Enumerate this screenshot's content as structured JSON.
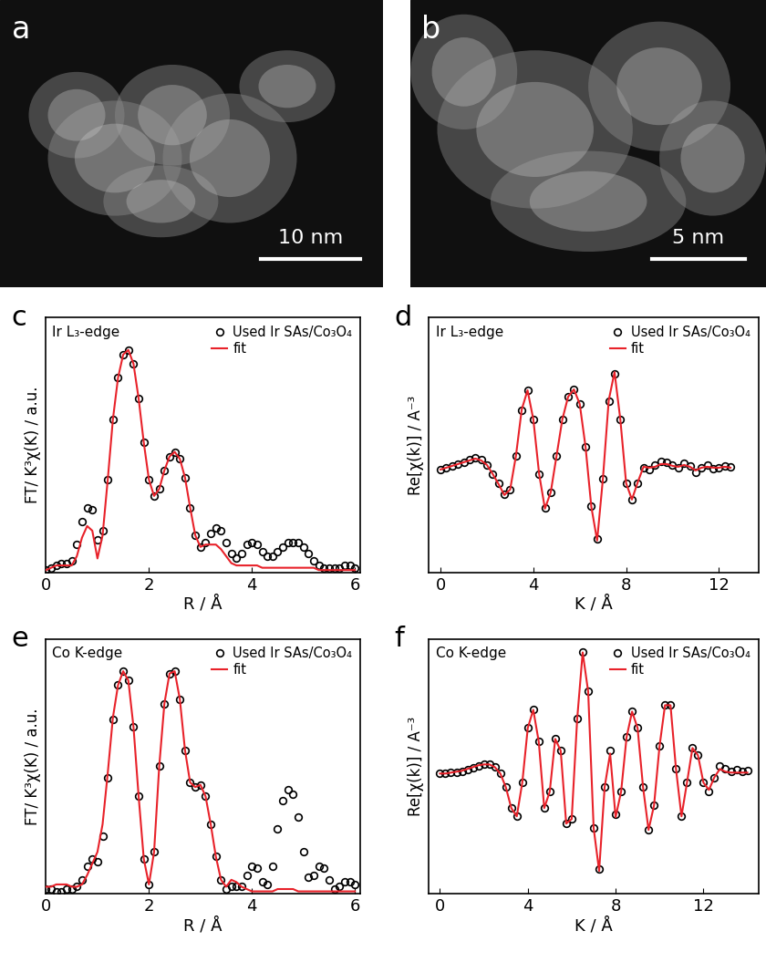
{
  "images": [
    {
      "label": "a",
      "scale_bar": "10 nm"
    },
    {
      "label": "b",
      "scale_bar": "5 nm"
    }
  ],
  "chart_data": [
    {
      "type": "line",
      "annotations": [
        "c",
        "Ir L₃-edge"
      ],
      "x_label": "R / Å",
      "y_label": "FT/ K³χ(K) / a.u.",
      "x": [
        0.0,
        0.1,
        0.2,
        0.3,
        0.4,
        0.5,
        0.6,
        0.7,
        0.8,
        0.9,
        1.0,
        1.1,
        1.2,
        1.3,
        1.4,
        1.5,
        1.6,
        1.7,
        1.8,
        1.9,
        2.0,
        2.1,
        2.2,
        2.3,
        2.4,
        2.5,
        2.6,
        2.7,
        2.8,
        2.9,
        3.0,
        3.1,
        3.2,
        3.3,
        3.4,
        3.5,
        3.6,
        3.7,
        3.8,
        3.9,
        4.0,
        4.1,
        4.2,
        4.3,
        4.4,
        4.5,
        4.6,
        4.7,
        4.8,
        4.9,
        5.0,
        5.1,
        5.2,
        5.3,
        5.4,
        5.5,
        5.6,
        5.7,
        5.8,
        5.9,
        6.0
      ],
      "series": [
        {
          "name": "Used Ir SAs/Co₃O₄",
          "type": "scatter",
          "marker": "circle",
          "color": "#000000",
          "values": [
            0.01,
            0.02,
            0.03,
            0.04,
            0.04,
            0.05,
            0.12,
            0.22,
            0.28,
            0.27,
            0.14,
            0.18,
            0.4,
            0.66,
            0.84,
            0.94,
            0.96,
            0.9,
            0.75,
            0.56,
            0.4,
            0.33,
            0.36,
            0.44,
            0.5,
            0.52,
            0.49,
            0.41,
            0.28,
            0.16,
            0.11,
            0.13,
            0.17,
            0.19,
            0.18,
            0.13,
            0.08,
            0.06,
            0.08,
            0.12,
            0.13,
            0.12,
            0.09,
            0.07,
            0.07,
            0.09,
            0.11,
            0.13,
            0.13,
            0.13,
            0.11,
            0.08,
            0.05,
            0.03,
            0.02,
            0.02,
            0.02,
            0.02,
            0.03,
            0.03,
            0.02
          ]
        },
        {
          "name": "fit",
          "type": "line",
          "line_style": "solid",
          "color": "#e8222a",
          "values": [
            0.01,
            0.02,
            0.03,
            0.03,
            0.03,
            0.03,
            0.07,
            0.15,
            0.2,
            0.18,
            0.06,
            0.16,
            0.4,
            0.66,
            0.84,
            0.94,
            0.96,
            0.9,
            0.75,
            0.56,
            0.4,
            0.33,
            0.36,
            0.44,
            0.5,
            0.52,
            0.49,
            0.41,
            0.28,
            0.16,
            0.11,
            0.12,
            0.12,
            0.12,
            0.1,
            0.07,
            0.04,
            0.03,
            0.03,
            0.03,
            0.03,
            0.03,
            0.02,
            0.02,
            0.02,
            0.02,
            0.02,
            0.02,
            0.02,
            0.02,
            0.02,
            0.02,
            0.02,
            0.01,
            0.01,
            0.01,
            0.01,
            0.01,
            0.01,
            0.01,
            0.01
          ]
        }
      ],
      "xlim": [
        0,
        6.1
      ],
      "ylim": [
        0,
        1.1
      ],
      "xticks": [
        0,
        2,
        4,
        6
      ],
      "tick_labels": "x",
      "legend": "upper right"
    },
    {
      "type": "line",
      "annotations": [
        "d",
        "Ir L₃-edge"
      ],
      "x_label": "K / Å",
      "y_label": "Re[χ(k)] / A⁻³",
      "x": [
        0,
        0.25,
        0.5,
        0.75,
        1,
        1.25,
        1.5,
        1.75,
        2,
        2.25,
        2.5,
        2.75,
        3,
        3.25,
        3.5,
        3.75,
        4,
        4.25,
        4.5,
        4.75,
        5,
        5.25,
        5.5,
        5.75,
        6,
        6.25,
        6.5,
        6.75,
        7,
        7.25,
        7.5,
        7.75,
        8,
        8.25,
        8.5,
        8.75,
        9,
        9.25,
        9.5,
        9.75,
        10,
        10.25,
        10.5,
        10.75,
        11,
        11.25,
        11.5,
        11.75,
        12,
        12.25,
        12.5
      ],
      "series": [
        {
          "name": "Used Ir SAs/Co₃O₄",
          "type": "scatter",
          "marker": "circle",
          "color": "#000000",
          "values": [
            0.0,
            0.02,
            0.04,
            0.06,
            0.08,
            0.11,
            0.13,
            0.11,
            0.05,
            -0.05,
            -0.15,
            -0.27,
            -0.22,
            0.15,
            0.65,
            0.87,
            0.55,
            -0.05,
            -0.42,
            -0.25,
            0.15,
            0.55,
            0.8,
            0.88,
            0.72,
            0.25,
            -0.4,
            -0.76,
            -0.1,
            0.75,
            1.05,
            0.55,
            -0.15,
            -0.33,
            -0.15,
            0.02,
            0.0,
            0.05,
            0.09,
            0.08,
            0.05,
            0.02,
            0.07,
            0.04,
            -0.03,
            0.02,
            0.05,
            0.01,
            0.02,
            0.04,
            0.03
          ]
        },
        {
          "name": "fit",
          "type": "line",
          "line_style": "solid",
          "color": "#e8222a",
          "values": [
            0.0,
            0.02,
            0.04,
            0.06,
            0.08,
            0.1,
            0.12,
            0.1,
            0.05,
            -0.05,
            -0.16,
            -0.28,
            -0.22,
            0.15,
            0.66,
            0.87,
            0.55,
            -0.05,
            -0.43,
            -0.25,
            0.15,
            0.55,
            0.8,
            0.88,
            0.72,
            0.25,
            -0.41,
            -0.78,
            -0.1,
            0.76,
            1.07,
            0.55,
            -0.15,
            -0.33,
            -0.14,
            0.03,
            0.02,
            0.03,
            0.06,
            0.06,
            0.04,
            0.03,
            0.05,
            0.03,
            -0.01,
            0.02,
            0.03,
            0.02,
            0.02,
            0.03,
            0.02
          ]
        }
      ],
      "xlim": [
        -0.5,
        13.7
      ],
      "ylim": [
        -1.13,
        1.67
      ],
      "xticks": [
        0,
        4,
        8,
        12
      ],
      "tick_labels": "x",
      "legend": "upper right"
    },
    {
      "type": "line",
      "annotations": [
        "e",
        "Co K-edge"
      ],
      "x_label": "R / Å",
      "y_label": "FT/ K³χ(K) / a.u.",
      "x": [
        0.0,
        0.1,
        0.2,
        0.3,
        0.4,
        0.5,
        0.6,
        0.7,
        0.8,
        0.9,
        1.0,
        1.1,
        1.2,
        1.3,
        1.4,
        1.5,
        1.6,
        1.7,
        1.8,
        1.9,
        2.0,
        2.1,
        2.2,
        2.3,
        2.4,
        2.5,
        2.6,
        2.7,
        2.8,
        2.9,
        3.0,
        3.1,
        3.2,
        3.3,
        3.4,
        3.5,
        3.6,
        3.7,
        3.8,
        3.9,
        4.0,
        4.1,
        4.2,
        4.3,
        4.4,
        4.5,
        4.6,
        4.7,
        4.8,
        4.9,
        5.0,
        5.1,
        5.2,
        5.3,
        5.4,
        5.5,
        5.6,
        5.7,
        5.8,
        5.9,
        6.0
      ],
      "series": [
        {
          "name": "Used Ir SAs/Co₃O₄",
          "type": "scatter",
          "marker": "circle",
          "color": "#000000",
          "values": [
            0.02,
            0.02,
            0.01,
            0.01,
            0.02,
            0.02,
            0.03,
            0.06,
            0.12,
            0.15,
            0.14,
            0.25,
            0.5,
            0.75,
            0.9,
            0.96,
            0.92,
            0.72,
            0.42,
            0.15,
            0.04,
            0.18,
            0.55,
            0.82,
            0.95,
            0.96,
            0.84,
            0.62,
            0.48,
            0.46,
            0.47,
            0.42,
            0.3,
            0.16,
            0.06,
            0.02,
            0.03,
            0.03,
            0.03,
            0.08,
            0.12,
            0.11,
            0.05,
            0.04,
            0.12,
            0.28,
            0.4,
            0.45,
            0.43,
            0.33,
            0.18,
            0.07,
            0.08,
            0.12,
            0.11,
            0.06,
            0.02,
            0.03,
            0.05,
            0.05,
            0.04
          ]
        },
        {
          "name": "fit",
          "type": "line",
          "line_style": "solid",
          "color": "#e8222a",
          "values": [
            0.03,
            0.03,
            0.04,
            0.04,
            0.04,
            0.03,
            0.03,
            0.04,
            0.08,
            0.13,
            0.18,
            0.3,
            0.52,
            0.76,
            0.9,
            0.96,
            0.92,
            0.72,
            0.42,
            0.15,
            0.04,
            0.18,
            0.55,
            0.82,
            0.95,
            0.96,
            0.84,
            0.62,
            0.48,
            0.46,
            0.47,
            0.42,
            0.3,
            0.16,
            0.06,
            0.03,
            0.06,
            0.05,
            0.03,
            0.02,
            0.01,
            0.01,
            0.01,
            0.01,
            0.01,
            0.02,
            0.02,
            0.02,
            0.02,
            0.01,
            0.01,
            0.01,
            0.01,
            0.01,
            0.01,
            0.01,
            0.01,
            0.01,
            0.01,
            0.01,
            0.01
          ]
        }
      ],
      "xlim": [
        0,
        6.1
      ],
      "ylim": [
        0,
        1.1
      ],
      "xticks": [
        0,
        2,
        4,
        6
      ],
      "tick_labels": "x",
      "legend": "upper right"
    },
    {
      "type": "line",
      "annotations": [
        "f",
        "Co K-edge"
      ],
      "x_label": "K / Å",
      "y_label": "Re[χ(k)] / A⁻³",
      "x": [
        0,
        0.25,
        0.5,
        0.75,
        1,
        1.25,
        1.5,
        1.75,
        2,
        2.25,
        2.5,
        2.75,
        3,
        3.25,
        3.5,
        3.75,
        4,
        4.25,
        4.5,
        4.75,
        5,
        5.25,
        5.5,
        5.75,
        6,
        6.25,
        6.5,
        6.75,
        7,
        7.25,
        7.5,
        7.75,
        8,
        8.25,
        8.5,
        8.75,
        9,
        9.25,
        9.5,
        9.75,
        10,
        10.25,
        10.5,
        10.75,
        11,
        11.25,
        11.5,
        11.75,
        12,
        12.25,
        12.5,
        12.75,
        13,
        13.25,
        13.5,
        13.75,
        14
      ],
      "series": [
        {
          "name": "Used Ir SAs/Co₃O₄",
          "type": "scatter",
          "marker": "circle",
          "color": "#000000",
          "values": [
            0.0,
            0.0,
            0.01,
            0.01,
            0.02,
            0.04,
            0.06,
            0.08,
            0.1,
            0.1,
            0.07,
            0.0,
            -0.15,
            -0.38,
            -0.47,
            -0.1,
            0.5,
            0.7,
            0.35,
            -0.38,
            -0.2,
            0.38,
            0.25,
            -0.55,
            -0.5,
            0.6,
            1.33,
            0.9,
            -0.6,
            -1.05,
            -0.15,
            0.25,
            -0.45,
            -0.2,
            0.4,
            0.68,
            0.5,
            -0.15,
            -0.62,
            -0.35,
            0.3,
            0.75,
            0.75,
            0.05,
            -0.47,
            -0.1,
            0.28,
            0.2,
            -0.1,
            -0.2,
            -0.05,
            0.08,
            0.05,
            0.02,
            0.04,
            0.02,
            0.03
          ]
        },
        {
          "name": "fit",
          "type": "line",
          "line_style": "solid",
          "color": "#e8222a",
          "values": [
            0.0,
            0.0,
            0.01,
            0.02,
            0.03,
            0.05,
            0.07,
            0.09,
            0.1,
            0.1,
            0.07,
            0.0,
            -0.15,
            -0.38,
            -0.47,
            -0.1,
            0.5,
            0.7,
            0.35,
            -0.38,
            -0.2,
            0.38,
            0.25,
            -0.55,
            -0.5,
            0.6,
            1.33,
            0.9,
            -0.6,
            -1.07,
            -0.15,
            0.22,
            -0.48,
            -0.2,
            0.4,
            0.68,
            0.5,
            -0.15,
            -0.62,
            -0.35,
            0.3,
            0.75,
            0.75,
            0.05,
            -0.47,
            -0.1,
            0.28,
            0.2,
            -0.1,
            -0.18,
            -0.04,
            0.05,
            0.02,
            0.01,
            0.01,
            0.01,
            0.01
          ]
        }
      ],
      "xlim": [
        -0.5,
        14.5
      ],
      "ylim": [
        -1.32,
        1.48
      ],
      "xticks": [
        0,
        4,
        8,
        12
      ],
      "tick_labels": "x",
      "legend": "upper right"
    }
  ]
}
